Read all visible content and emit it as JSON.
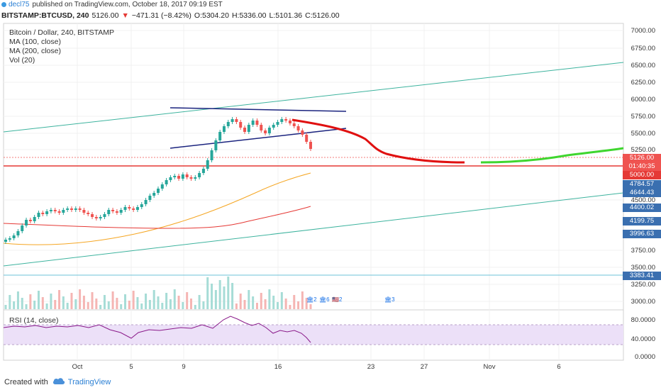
{
  "header": {
    "author": "decl75",
    "published_text": "published on TradingView.com, October 18, 2017 09:19 EST",
    "symbol": "BITSTAMP:BTCUSD, 240",
    "price": "5126.00",
    "change": "−471.31 (−8.42%)",
    "open": "O:5304.20",
    "high": "H:5336.00",
    "low": "L:5101.36",
    "close": "C:5126.00"
  },
  "legend": {
    "title": "Bitcoin / Dollar, 240, BITSTAMP",
    "ma100": "MA (100, close)",
    "ma200": "MA (200, close)",
    "vol": "Vol (20)",
    "rsi": "RSI (14, close)"
  },
  "price_axis": [
    "7000.00",
    "6750.00",
    "6500.00",
    "6250.00",
    "6000.00",
    "5750.00",
    "5500.00",
    "5250.00",
    "4500.00",
    "3750.00",
    "3500.00",
    "3250.00",
    "3000.00"
  ],
  "price_tags": [
    {
      "label": "5126.00",
      "color": "#ef5350"
    },
    {
      "label": "01:40:35",
      "color": "#ef5350"
    },
    {
      "label": "5000.00",
      "color": "#e53935"
    },
    {
      "label": "4784.57",
      "color": "#3a6fb0"
    },
    {
      "label": "4644.43",
      "color": "#3a6fb0"
    },
    {
      "label": "4400.02",
      "color": "#3a6fb0"
    },
    {
      "label": "4199.75",
      "color": "#3a6fb0"
    },
    {
      "label": "3996.63",
      "color": "#3a6fb0"
    },
    {
      "label": "3383.41",
      "color": "#3a6fb0"
    }
  ],
  "rsi_axis": [
    "80.0000",
    "40.0000",
    "0.0000"
  ],
  "time_axis": [
    "Oct",
    "5",
    "9",
    "16",
    "23",
    "27",
    "Nov",
    "6"
  ],
  "events": [
    "2",
    "6",
    "2",
    "3"
  ],
  "footer": {
    "created_with": "Created with",
    "brand": "TradingView"
  },
  "colors": {
    "up": "#26a69a",
    "down": "#ef5350",
    "ma100": "#f5a623",
    "ma200": "#e53935",
    "trend": "#1a237e",
    "channel": "#3db39e",
    "projection_down": "#e01010",
    "projection_up": "#3fd62f",
    "rsi": "#8a1a8a"
  },
  "chart_data": {
    "type": "candlestick",
    "title": "Bitcoin / Dollar, 240, BITSTAMP",
    "ylim": [
      2900,
      7100
    ],
    "series": [
      {
        "name": "MA (100, close)"
      },
      {
        "name": "MA (200, close)"
      },
      {
        "name": "Vol (20)"
      },
      {
        "name": "RSI (14, close)"
      }
    ]
  }
}
